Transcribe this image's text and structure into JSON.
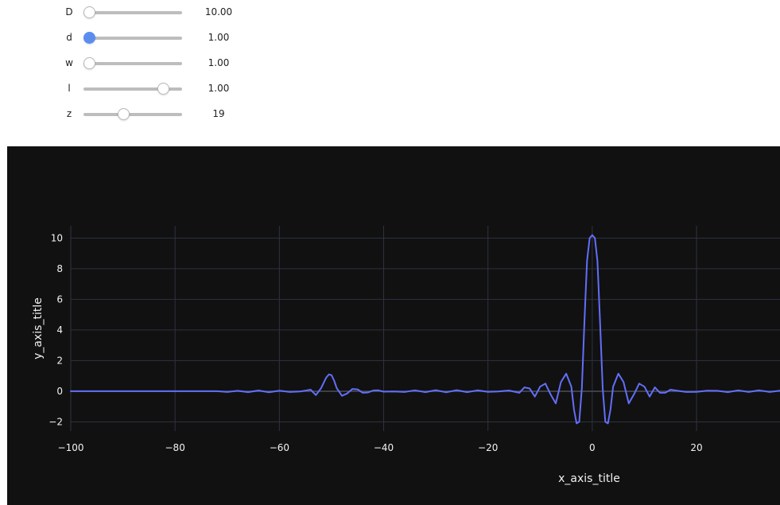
{
  "sliders": [
    {
      "label": "D",
      "value": "10.00",
      "fraction": 0.0,
      "active": false
    },
    {
      "label": "d",
      "value": "1.00",
      "fraction": 0.0,
      "active": true
    },
    {
      "label": "w",
      "value": "1.00",
      "fraction": 0.0,
      "active": false
    },
    {
      "label": "l",
      "value": "1.00",
      "fraction": 0.85,
      "active": false
    },
    {
      "label": "z",
      "value": "19",
      "fraction": 0.39,
      "active": false
    }
  ],
  "colors": {
    "plot_background": "#111111",
    "grid": "#2e3240",
    "line": "#636efa",
    "text": "#f2f2f2",
    "slider_active": "#5b8def"
  },
  "chart_data": {
    "type": "line",
    "xlabel": "x_axis_title",
    "ylabel": "y_axis_title",
    "xlim": [
      -100,
      36
    ],
    "ylim": [
      -2.6,
      10.8
    ],
    "xticks": [
      -100,
      -80,
      -60,
      -40,
      -20,
      0,
      20
    ],
    "yticks": [
      -2,
      0,
      2,
      4,
      6,
      8,
      10
    ],
    "grid": true,
    "series": [
      {
        "x": [
          -100,
          -80,
          -72,
          -70,
          -68,
          -66,
          -64,
          -62,
          -60,
          -58,
          -56,
          -54,
          -53,
          -52,
          -51,
          -50.5,
          -50,
          -49.5,
          -49,
          -48,
          -47,
          -46,
          -45,
          -44,
          -43,
          -42,
          -41,
          -40,
          -38,
          -36,
          -34,
          -32,
          -30,
          -28,
          -26,
          -24,
          -22,
          -20,
          -18,
          -16,
          -14,
          -13,
          -12,
          -11,
          -10,
          -9,
          -8,
          -7,
          -6,
          -5,
          -4,
          -3.5,
          -3,
          -2.5,
          -2,
          -1.5,
          -1,
          -0.5,
          0,
          0.5,
          1,
          1.5,
          2,
          2.5,
          3,
          3.5,
          4,
          5,
          6,
          7,
          8,
          9,
          10,
          11,
          12,
          13,
          14,
          15,
          16,
          18,
          20,
          22,
          24,
          26,
          28,
          30,
          32,
          34,
          36
        ],
        "y": [
          0,
          0,
          0,
          -0.05,
          0.03,
          -0.06,
          0.05,
          -0.07,
          0.04,
          -0.05,
          -0.02,
          0.1,
          -0.25,
          0.2,
          0.9,
          1.1,
          1.05,
          0.7,
          0.2,
          -0.3,
          -0.15,
          0.15,
          0.12,
          -0.1,
          -0.08,
          0.05,
          0.06,
          -0.03,
          -0.02,
          -0.05,
          0.06,
          -0.06,
          0.07,
          -0.07,
          0.07,
          -0.06,
          0.06,
          -0.04,
          -0.02,
          0.05,
          -0.1,
          0.25,
          0.18,
          -0.35,
          0.3,
          0.5,
          -0.2,
          -0.8,
          0.6,
          1.15,
          0.3,
          -1.2,
          -2.1,
          -2.0,
          0.2,
          4.5,
          8.5,
          10.0,
          10.2,
          10.0,
          8.5,
          4.5,
          0.2,
          -2.0,
          -2.1,
          -1.2,
          0.3,
          1.15,
          0.6,
          -0.8,
          -0.2,
          0.5,
          0.3,
          -0.35,
          0.25,
          -0.1,
          -0.1,
          0.1,
          0.05,
          -0.05,
          -0.04,
          0.04,
          0.03,
          -0.06,
          0.06,
          -0.05,
          0.06,
          -0.05,
          0.04
        ]
      }
    ]
  }
}
